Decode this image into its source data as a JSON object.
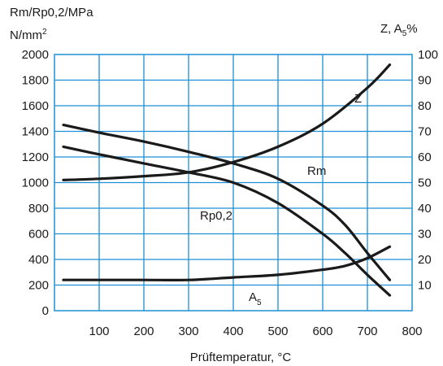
{
  "chart_data": {
    "type": "line",
    "title": "",
    "left_axis_label_line1": "Rm/Rp0,2/MPa",
    "left_axis_label_line2_base": "N/mm",
    "left_axis_label_line2_sup": "2",
    "right_axis_label_base": "Z, A",
    "right_axis_label_sub": "5",
    "right_axis_label_tail": "%",
    "xlabel": "Prüftemperatur, °C",
    "xlim": [
      0,
      800
    ],
    "ylim_left": [
      0,
      2000
    ],
    "ylim_right": [
      0,
      100
    ],
    "x_ticks": [
      "100",
      "200",
      "300",
      "400",
      "500",
      "600",
      "700",
      "800"
    ],
    "y_left_ticks": [
      "0",
      "200",
      "400",
      "600",
      "800",
      "1000",
      "1200",
      "1400",
      "1600",
      "1800",
      "2000"
    ],
    "y_right_ticks": [
      "10",
      "20",
      "30",
      "40",
      "50",
      "60",
      "70",
      "80",
      "90",
      "100"
    ],
    "grid": true,
    "legend": "none",
    "line_color": "#1a1a1a",
    "grid_color": "#1e8fd6",
    "series": [
      {
        "name": "Rm",
        "axis": "left",
        "x": [
          20,
          100,
          200,
          300,
          400,
          500,
          600,
          650,
          700,
          750
        ],
        "y": [
          1450,
          1390,
          1320,
          1240,
          1150,
          1030,
          820,
          670,
          450,
          240
        ]
      },
      {
        "name": "Rp0,2",
        "axis": "left",
        "x": [
          20,
          100,
          200,
          300,
          400,
          500,
          600,
          650,
          700,
          750
        ],
        "y": [
          1280,
          1220,
          1150,
          1080,
          1000,
          840,
          600,
          450,
          280,
          120
        ]
      },
      {
        "name": "Z",
        "axis": "right",
        "x": [
          20,
          100,
          200,
          300,
          400,
          500,
          600,
          700,
          750
        ],
        "y": [
          51,
          51.5,
          52.5,
          54,
          58,
          64,
          73,
          87,
          96
        ]
      },
      {
        "name": "A",
        "name_sub": "5",
        "axis": "right",
        "x": [
          20,
          100,
          200,
          300,
          400,
          500,
          600,
          650,
          700,
          750
        ],
        "y": [
          12,
          12,
          12,
          12,
          13,
          14,
          16,
          17.5,
          20.5,
          25
        ]
      }
    ]
  }
}
